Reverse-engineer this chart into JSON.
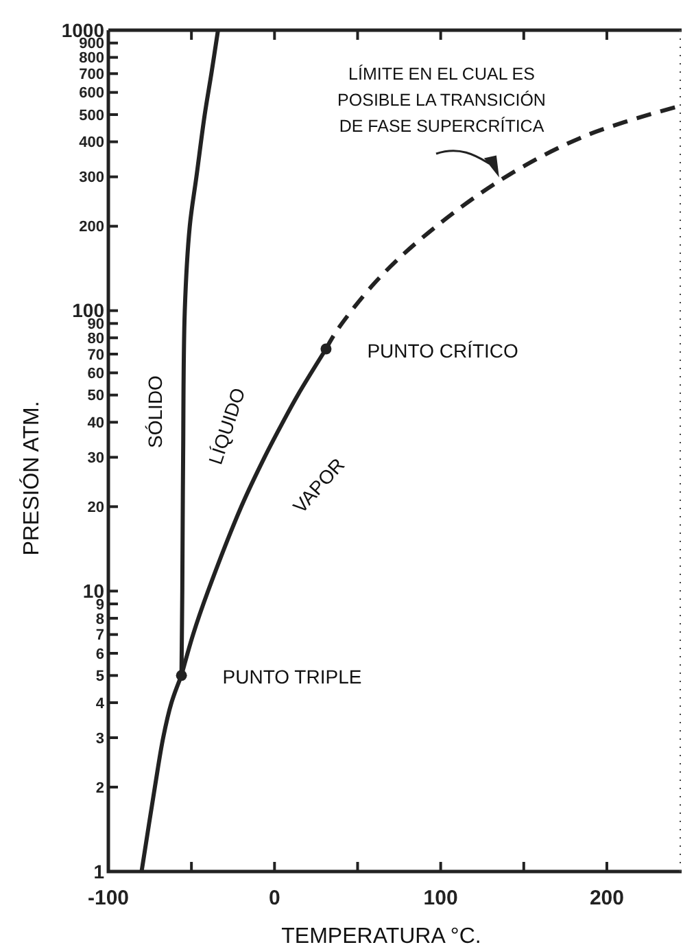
{
  "chart_data": {
    "type": "line",
    "xlabel": "TEMPERATURA °C.",
    "ylabel": "PRESIÓN ATM.",
    "log": "y",
    "xlim": [
      -100,
      245
    ],
    "xticks": [
      -100,
      {
        "value": -50,
        "label": null
      },
      0,
      {
        "value": 50,
        "label": null
      },
      100,
      {
        "value": 150,
        "label": null
      },
      200
    ],
    "ylim": [
      1,
      1000
    ],
    "yticks": [
      1,
      2,
      3,
      4,
      5,
      6,
      7,
      8,
      9,
      10,
      20,
      30,
      40,
      50,
      60,
      70,
      80,
      90,
      100,
      200,
      300,
      400,
      500,
      600,
      700,
      800,
      900,
      1000
    ],
    "series": [
      {
        "color": "#222222",
        "line_style": "solid",
        "x": [
          -80,
          -72,
          -67,
          -62,
          -56
        ],
        "values": [
          1,
          2,
          3,
          4,
          5
        ]
      },
      {
        "color": "#222222",
        "line_style": "solid",
        "x": [
          -56,
          -55.5,
          -55,
          -54,
          -51,
          -47,
          -42,
          -38,
          -34
        ],
        "values": [
          5,
          10,
          30,
          100,
          200,
          300,
          500,
          700,
          1000
        ]
      },
      {
        "color": "#222222",
        "line_style": "solid",
        "x": [
          -56,
          -49,
          -40,
          -20,
          -6,
          5,
          14,
          31
        ],
        "values": [
          5,
          7,
          10,
          20,
          30,
          40,
          50,
          73
        ]
      },
      {
        "color": "#222222",
        "line_style": "dashed",
        "x": [
          31,
          37,
          60,
          88,
          136,
          187,
          244
        ],
        "values": [
          73,
          84,
          125,
          180,
          292,
          420,
          537
        ]
      },
      {
        "type": "scatter",
        "color": "#222222",
        "marker": "circle",
        "x": [
          -56,
          31
        ],
        "values": [
          5,
          73
        ]
      }
    ],
    "annotations": [
      "SÓLIDO",
      "LÍQUIDO",
      "VAPOR",
      {
        "text": "PUNTO TRIPLE",
        "x": -56,
        "y": 5
      },
      {
        "text": "PUNTO CRÍTICO",
        "x": 31,
        "y": 73
      },
      {
        "text": "LÍMITE EN EL CUAL ES\nPOSIBLE LA TRANSICIÓN\nDE FASE SUPERCRÍTICA",
        "x": 136,
        "y": 292
      }
    ]
  }
}
